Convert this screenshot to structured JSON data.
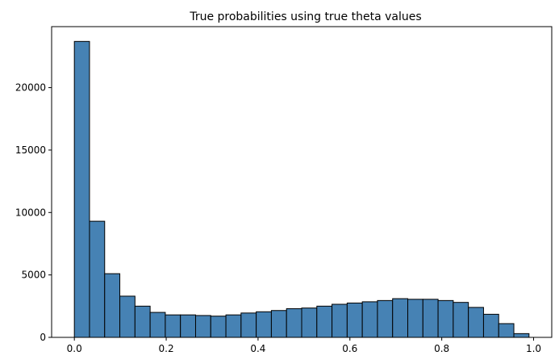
{
  "chart_data": {
    "type": "bar",
    "title": "True probabilities using true theta values",
    "xlabel": "",
    "ylabel": "",
    "bar_color": "#4682b4",
    "edge_color": "#000000",
    "bin_edges": [
      0.0,
      0.033,
      0.066,
      0.099,
      0.132,
      0.165,
      0.198,
      0.231,
      0.264,
      0.297,
      0.33,
      0.363,
      0.396,
      0.429,
      0.462,
      0.495,
      0.528,
      0.561,
      0.594,
      0.627,
      0.66,
      0.693,
      0.726,
      0.759,
      0.792,
      0.825,
      0.858,
      0.891,
      0.924,
      0.957,
      0.99
    ],
    "values": [
      23700,
      9300,
      5100,
      3300,
      2500,
      2000,
      1800,
      1800,
      1750,
      1700,
      1800,
      1950,
      2050,
      2150,
      2300,
      2350,
      2500,
      2650,
      2750,
      2850,
      2950,
      3100,
      3050,
      3050,
      2950,
      2800,
      2400,
      1850,
      1100,
      300
    ],
    "xlim": [
      -0.0495,
      1.0395
    ],
    "ylim": [
      0,
      24885
    ],
    "xticks": [
      0.0,
      0.2,
      0.4,
      0.6,
      0.8,
      1.0
    ],
    "xtick_labels": [
      "0.0",
      "0.2",
      "0.4",
      "0.6",
      "0.8",
      "1.0"
    ],
    "yticks": [
      0,
      5000,
      10000,
      15000,
      20000
    ],
    "ytick_labels": [
      "0",
      "5000",
      "10000",
      "15000",
      "20000"
    ],
    "grid": false,
    "legend": null
  }
}
